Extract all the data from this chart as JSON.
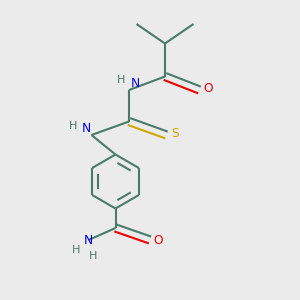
{
  "background_color": "#ebebeb",
  "bond_color": "#4a7a6a",
  "N_color": "#0000ee",
  "O_color": "#ee0000",
  "S_color": "#ccaa00",
  "line_width": 1.5,
  "fig_size": [
    3.0,
    3.0
  ],
  "dpi": 100,
  "xlim": [
    0,
    10
  ],
  "ylim": [
    0,
    10
  ]
}
